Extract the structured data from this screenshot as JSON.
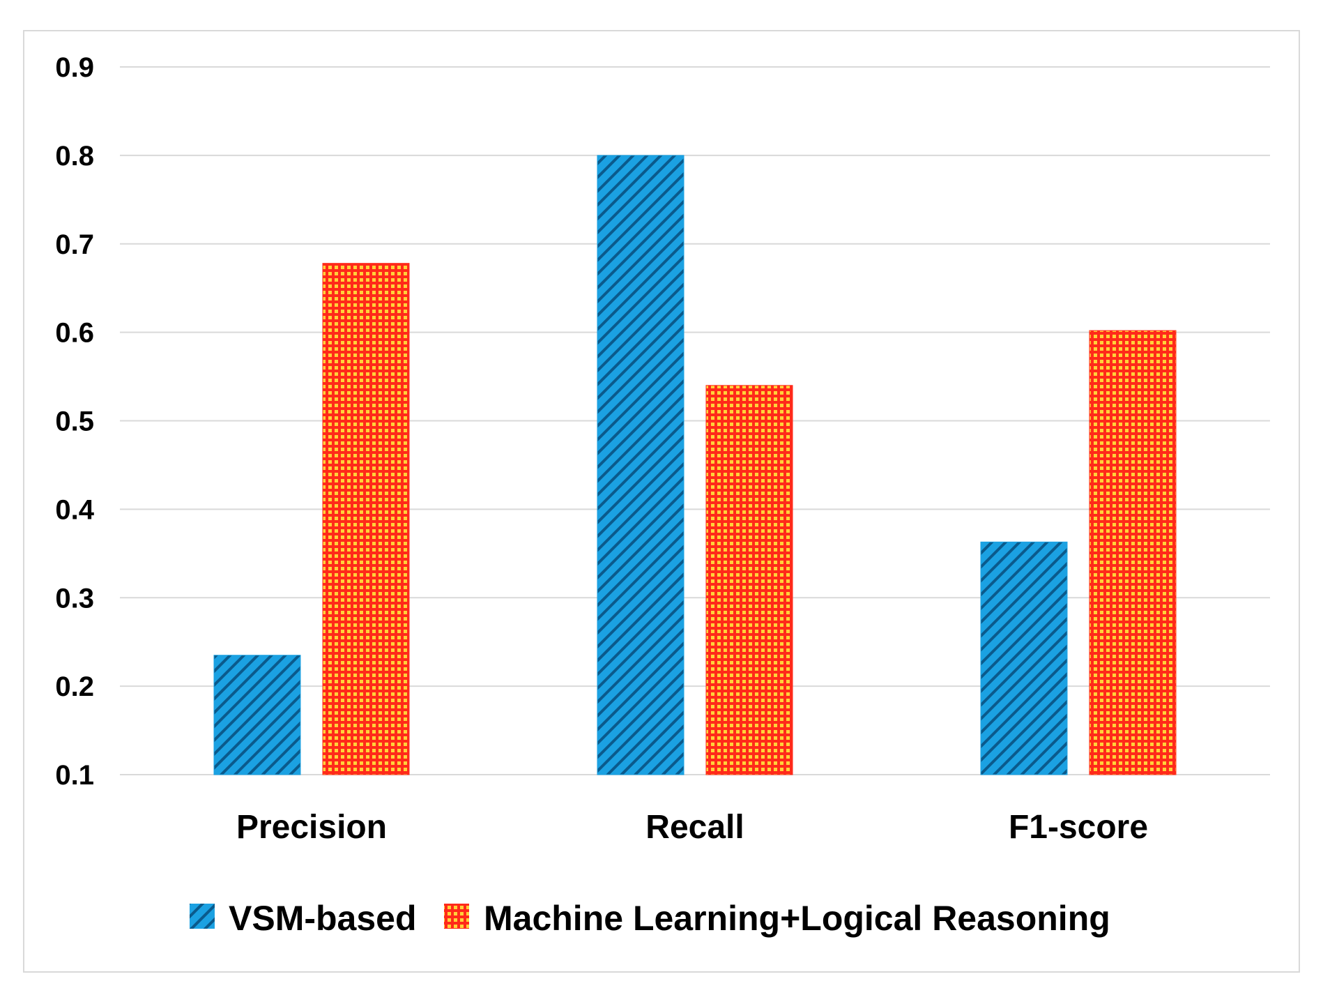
{
  "chart_data": {
    "type": "bar",
    "title": "",
    "xlabel": "",
    "ylabel": "",
    "categories": [
      "Precision",
      "Recall",
      "F1-score"
    ],
    "series": [
      {
        "name": "VSM-based",
        "values": [
          0.235,
          0.8,
          0.363
        ],
        "color": "#1ba1e2",
        "pattern": "diagonal-stripes"
      },
      {
        "name": "Machine Learning+Logical Reasoning",
        "values": [
          0.678,
          0.54,
          0.602
        ],
        "color": "#ff2a1a",
        "pattern": "grid"
      }
    ],
    "ylim": [
      0.1,
      0.9
    ],
    "yticks": [
      "0.1",
      "0.2",
      "0.3",
      "0.4",
      "0.5",
      "0.6",
      "0.7",
      "0.8",
      "0.9"
    ],
    "grid": true,
    "legend_position": "bottom"
  }
}
